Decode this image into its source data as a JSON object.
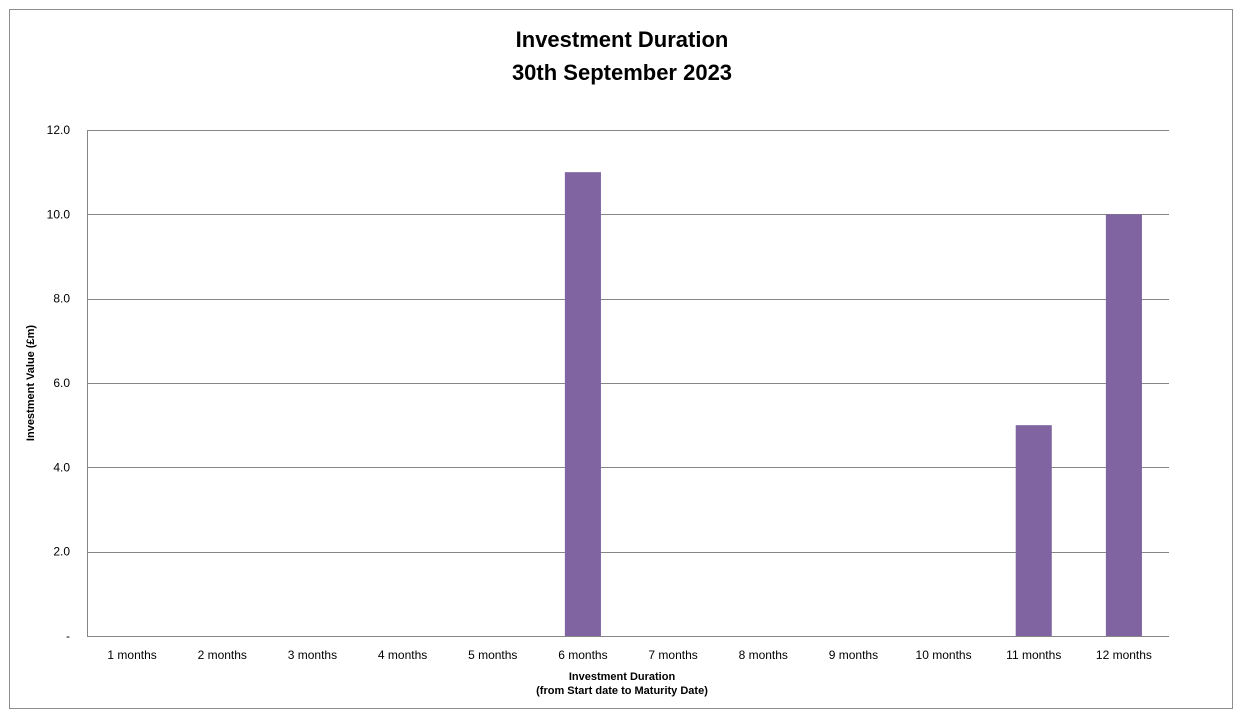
{
  "chart_data": {
    "type": "bar",
    "title": "Investment Duration",
    "subtitle": "30th September 2023",
    "xlabel": "Investment Duration",
    "xlabel_sub": "(from Start date to Maturity Date)",
    "ylabel": "Investment Value (£m)",
    "categories": [
      "1 months",
      "2 months",
      "3 months",
      "4 months",
      "5 months",
      "6 months",
      "7 months",
      "8 months",
      "9 months",
      "10 months",
      "11 months",
      "12 months"
    ],
    "values": [
      0,
      0,
      0,
      0,
      0,
      11,
      0,
      0,
      0,
      0,
      5,
      10
    ],
    "ylim": [
      0,
      12
    ],
    "yticks": [
      0,
      2,
      4,
      6,
      8,
      10,
      12
    ],
    "ytick_labels": [
      "-",
      "2.0",
      "4.0",
      "6.0",
      "8.0",
      "10.0",
      "12.0"
    ],
    "grid": true,
    "legend": "none",
    "bar_color": "#8064a2",
    "grid_color": "#868686"
  }
}
